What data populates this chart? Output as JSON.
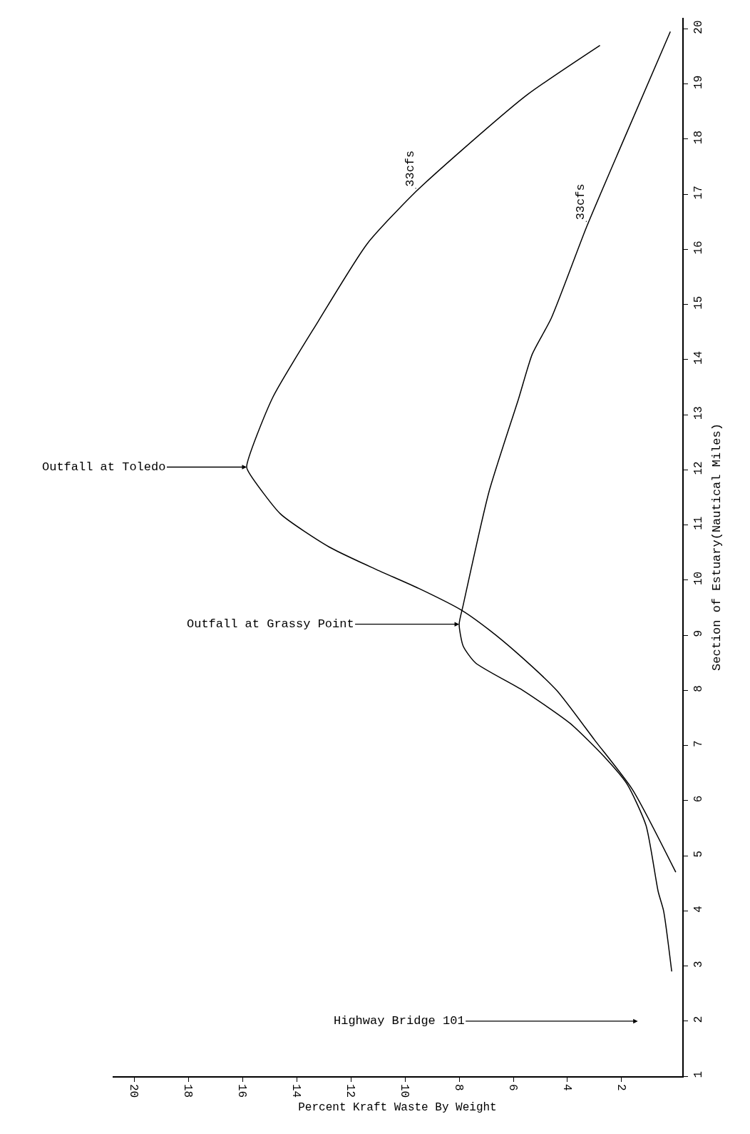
{
  "chart_data": {
    "type": "line",
    "xlabel": "Percent Kraft Waste By Weight",
    "ylabel": "Section of Estuary(Nautical Miles)",
    "series": [
      {
        "color": "#000000",
        "x": [
          0,
          1.6,
          3.0,
          4.4,
          5.8,
          6.9,
          7.9,
          9.5,
          11.1,
          12.8,
          14.6,
          15.7,
          15.85,
          14.9,
          13.2,
          11.4,
          9.7,
          7.9,
          5.5,
          2.8
        ],
        "values": [
          4.7,
          6.2,
          7.1,
          8.0,
          8.65,
          9.1,
          9.45,
          9.85,
          10.2,
          10.6,
          11.2,
          11.9,
          12.05,
          13.3,
          14.7,
          16.1,
          17.0,
          17.8,
          18.8,
          19.7
        ]
      },
      {
        "color": "#000000",
        "x": [
          0.15,
          0.45,
          0.65,
          1.1,
          1.8,
          2.65,
          3.9,
          5.65,
          7.4,
          7.85,
          8.0,
          7.85,
          6.9,
          5.8,
          5.3,
          4.6,
          3.3,
          2.0,
          0.2
        ],
        "values": [
          2.9,
          4.0,
          4.35,
          5.55,
          6.3,
          6.8,
          7.4,
          8.0,
          8.5,
          8.8,
          9.2,
          9.55,
          11.6,
          13.3,
          14.1,
          14.75,
          16.4,
          17.9,
          19.95
        ]
      }
    ],
    "xlim": [
      20.8,
      -0.24
    ],
    "xticks": [
      2,
      4,
      6,
      8,
      10,
      12,
      14,
      16,
      18,
      20
    ],
    "ylim": [
      1,
      20.2
    ],
    "yticks": [
      1,
      2,
      3,
      4,
      5,
      6,
      7,
      8,
      9,
      10,
      11,
      12,
      13,
      14,
      15,
      16,
      17,
      18,
      19,
      20
    ],
    "grid": false,
    "marker": "none",
    "line_style": "solid",
    "annotations": [
      {
        "text": "Outfall at Toledo",
        "x": 15.85,
        "y": 12.05
      },
      {
        "text": "Outfall at Grassy Point",
        "x": 8.0,
        "y": 9.2
      },
      "Highway Bridge 101",
      {
        "text": "33cfs",
        "x": 9.6,
        "y": 17.1
      },
      {
        "text": "33cfs",
        "x": 3.3,
        "y": 16.5
      }
    ]
  }
}
